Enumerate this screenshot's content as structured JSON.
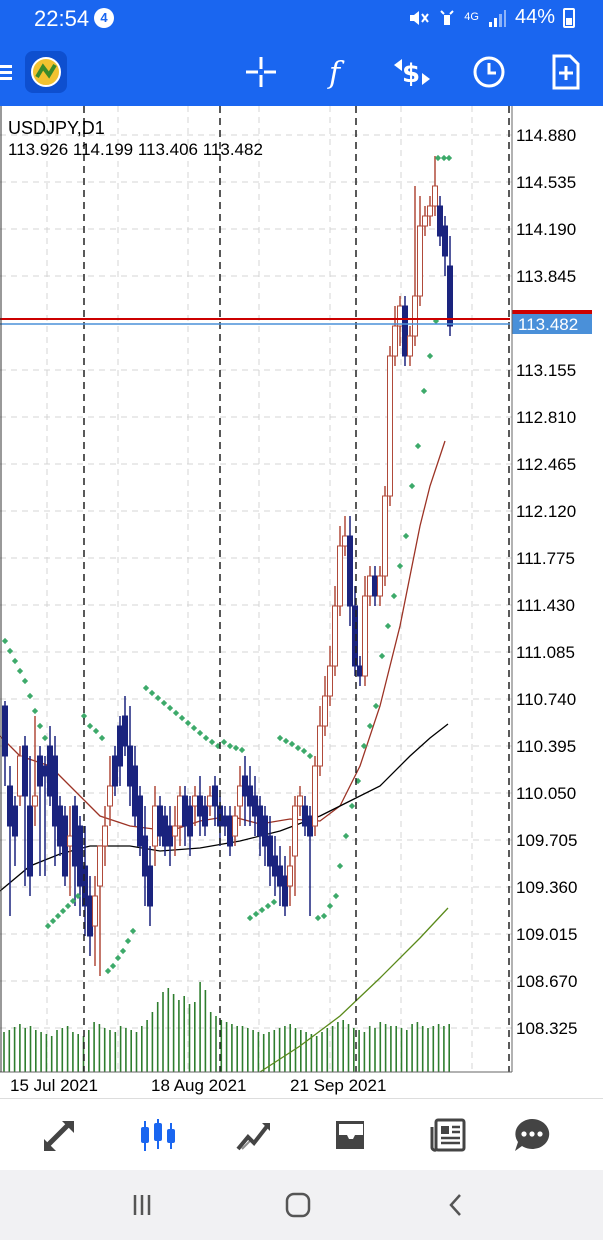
{
  "status_bar": {
    "time": "22:54",
    "notification_count": "4",
    "network": "4G",
    "battery": "44%"
  },
  "toolbar": {
    "menu_icon": "hamburger-menu-icon",
    "logo_icon": "metatrader-logo-icon",
    "buttons": [
      "crosshair-icon",
      "indicator-f-icon",
      "symbol-change-icon",
      "timeframe-clock-icon",
      "add-order-icon"
    ]
  },
  "chart": {
    "symbol_label": "USDJPY,D1",
    "ohlc": "113.926 114.199 113.406 113.482",
    "current_price": "113.482",
    "price_axis": [
      "114.880",
      "114.535",
      "114.190",
      "113.845",
      "113.155",
      "112.810",
      "112.465",
      "112.120",
      "111.775",
      "111.430",
      "111.085",
      "110.740",
      "110.395",
      "110.050",
      "109.705",
      "109.360",
      "109.015",
      "108.670",
      "108.325"
    ],
    "date_axis": [
      "15 Jul 2021",
      "18 Aug 2021",
      "21 Sep 2021"
    ],
    "colors": {
      "bull": "#b04a3a",
      "bear": "#1a237e",
      "sar": "#3daa6a",
      "ma_fast": "#9c3325",
      "ma_mid": "#000000",
      "ma_slow": "#5a8a1a",
      "volume": "#2e7d2e",
      "bid_line": "#cc0000",
      "ask_line": "#4a90d9"
    }
  },
  "bottom_nav": {
    "items": [
      "quotes-icon",
      "chart-icon",
      "trade-icon",
      "history-icon",
      "news-icon",
      "chat-icon"
    ],
    "active": "chart-icon"
  },
  "system_nav": {
    "items": [
      "recent-apps-icon",
      "home-icon",
      "back-icon"
    ]
  }
}
